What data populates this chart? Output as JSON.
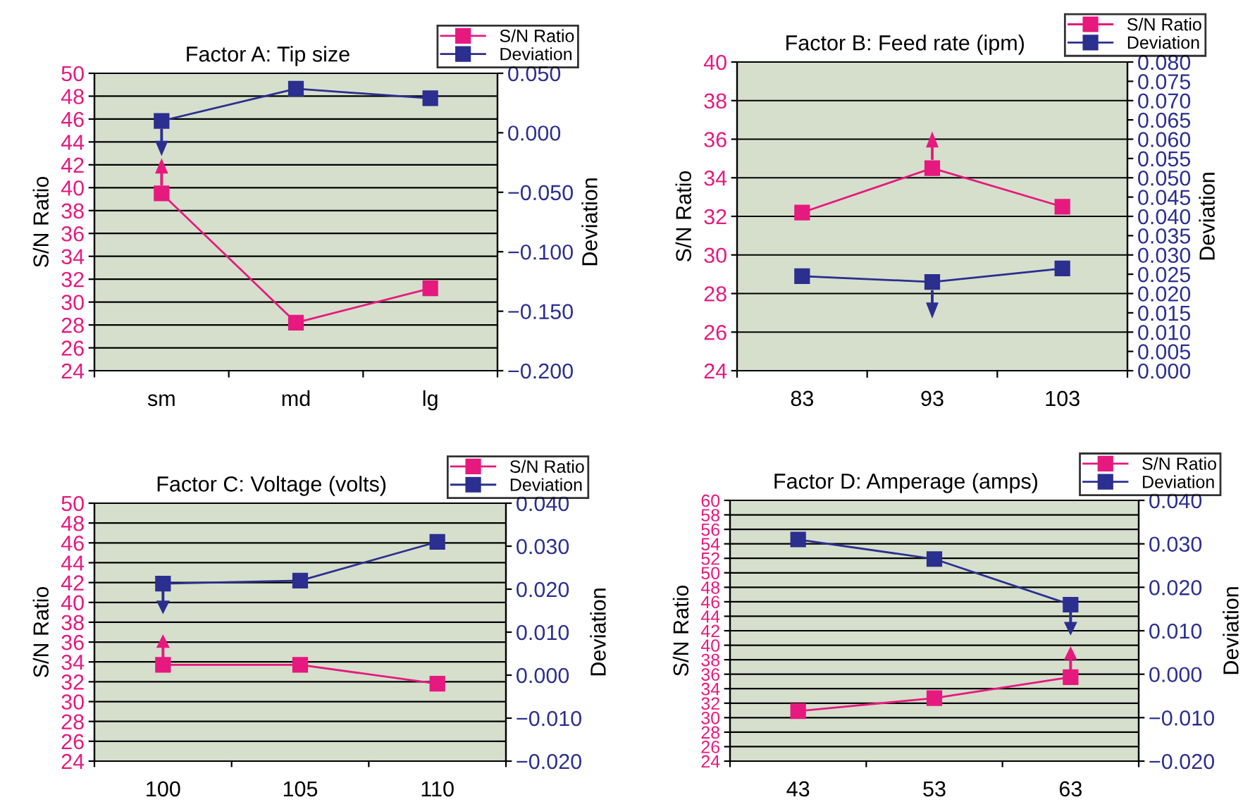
{
  "chart_data": [
    {
      "type": "line",
      "title": "Factor A: Tip size",
      "categories": [
        "sm",
        "md",
        "lg"
      ],
      "ylabel": "S/N Ratio",
      "y2label": "Deviation",
      "ylim": [
        24,
        50
      ],
      "yticks": [
        24,
        26,
        28,
        30,
        32,
        34,
        36,
        38,
        40,
        42,
        44,
        46,
        48,
        50
      ],
      "y2lim": [
        -0.2,
        0.05
      ],
      "y2ticks": [
        {
          "value": -0.2,
          "label": "−0.200"
        },
        {
          "value": -0.15,
          "label": "−0.150"
        },
        {
          "value": -0.1,
          "label": "−0.100"
        },
        {
          "value": -0.05,
          "label": "−0.050"
        },
        {
          "value": 0,
          "label": "0.000"
        },
        {
          "value": 0.05,
          "label": "0.050"
        }
      ],
      "grid": "y",
      "legend": "top right",
      "marker": "square",
      "line_style": "solid",
      "series": [
        {
          "name": "S/N Ratio",
          "color": "#e6197f",
          "values": [
            39.5,
            28.2,
            31.2
          ]
        },
        {
          "name": "Deviation",
          "color": "#2b2f8f",
          "axis": "y2",
          "values": [
            0.01,
            0.037,
            0.029
          ]
        }
      ]
    },
    {
      "type": "line",
      "title": "Factor B: Feed rate (ipm)",
      "categories": [
        "83",
        "93",
        "103"
      ],
      "ylabel": "S/N Ratio",
      "y2label": "Deviation",
      "ylim": [
        24,
        40
      ],
      "yticks": [
        24,
        26,
        28,
        30,
        32,
        34,
        36,
        38,
        40
      ],
      "y2lim": [
        0,
        0.08
      ],
      "y2ticks": [
        {
          "value": 0,
          "label": "0.000"
        },
        {
          "value": 0.005,
          "label": "0.005"
        },
        {
          "value": 0.01,
          "label": "0.010"
        },
        {
          "value": 0.015,
          "label": "0.015"
        },
        {
          "value": 0.02,
          "label": "0.020"
        },
        {
          "value": 0.025,
          "label": "0.025"
        },
        {
          "value": 0.03,
          "label": "0.030"
        },
        {
          "value": 0.035,
          "label": "0.035"
        },
        {
          "value": 0.04,
          "label": "0.040"
        },
        {
          "value": 0.045,
          "label": "0.045"
        },
        {
          "value": 0.05,
          "label": "0.050"
        },
        {
          "value": 0.055,
          "label": "0.055"
        },
        {
          "value": 0.06,
          "label": "0.060"
        },
        {
          "value": 0.065,
          "label": "0.065"
        },
        {
          "value": 0.07,
          "label": "0.070"
        },
        {
          "value": 0.075,
          "label": "0.075"
        },
        {
          "value": 0.08,
          "label": "0.080"
        }
      ],
      "grid": "y",
      "legend": "top right",
      "marker": "square",
      "line_style": "solid",
      "series": [
        {
          "name": "S/N Ratio",
          "color": "#e6197f",
          "values": [
            32.2,
            34.5,
            32.5
          ]
        },
        {
          "name": "Deviation",
          "color": "#2b2f8f",
          "axis": "y2",
          "values": [
            0.0245,
            0.023,
            0.0265
          ]
        }
      ]
    },
    {
      "type": "line",
      "title": "Factor C: Voltage (volts)",
      "categories": [
        "100",
        "105",
        "110"
      ],
      "ylabel": "S/N Ratio",
      "y2label": "Deviation",
      "ylim": [
        24,
        50
      ],
      "yticks": [
        24,
        26,
        28,
        30,
        32,
        34,
        36,
        38,
        40,
        42,
        44,
        46,
        48,
        50
      ],
      "y2lim": [
        -0.02,
        0.04
      ],
      "y2ticks": [
        {
          "value": -0.02,
          "label": "−0.020"
        },
        {
          "value": -0.01,
          "label": "−0.010"
        },
        {
          "value": 0,
          "label": "0.000"
        },
        {
          "value": 0.01,
          "label": "0.010"
        },
        {
          "value": 0.02,
          "label": "0.020"
        },
        {
          "value": 0.03,
          "label": "0.030"
        },
        {
          "value": 0.04,
          "label": "0.040"
        }
      ],
      "grid": "y",
      "legend": "top right",
      "marker": "square",
      "line_style": "solid",
      "series": [
        {
          "name": "S/N Ratio",
          "color": "#e6197f",
          "values": [
            33.7,
            33.7,
            31.8
          ]
        },
        {
          "name": "Deviation",
          "color": "#2b2f8f",
          "axis": "y2",
          "values": [
            0.0213,
            0.022,
            0.031
          ]
        }
      ]
    },
    {
      "type": "line",
      "title": "Factor D: Amperage (amps)",
      "categories": [
        "43",
        "53",
        "63"
      ],
      "ylabel": "S/N Ratio",
      "y2label": "Deviation",
      "ylim": [
        24,
        60
      ],
      "yticks": [
        24,
        26,
        28,
        30,
        32,
        34,
        36,
        38,
        40,
        42,
        44,
        46,
        48,
        50,
        52,
        54,
        56,
        58,
        60
      ],
      "y2lim": [
        -0.02,
        0.04
      ],
      "y2ticks": [
        {
          "value": -0.02,
          "label": "−0.020"
        },
        {
          "value": -0.01,
          "label": "−0.010"
        },
        {
          "value": 0,
          "label": "0.000"
        },
        {
          "value": 0.01,
          "label": "0.010"
        },
        {
          "value": 0.02,
          "label": "0.020"
        },
        {
          "value": 0.03,
          "label": "0.030"
        },
        {
          "value": 0.04,
          "label": "0.040"
        }
      ],
      "grid": "y",
      "legend": "top right",
      "marker": "square",
      "line_style": "solid",
      "series": [
        {
          "name": "S/N Ratio",
          "color": "#e6197f",
          "values": [
            30.9,
            32.7,
            35.6
          ]
        },
        {
          "name": "Deviation",
          "color": "#2b2f8f",
          "axis": "y2",
          "values": [
            0.031,
            0.0265,
            0.016
          ]
        }
      ]
    }
  ]
}
